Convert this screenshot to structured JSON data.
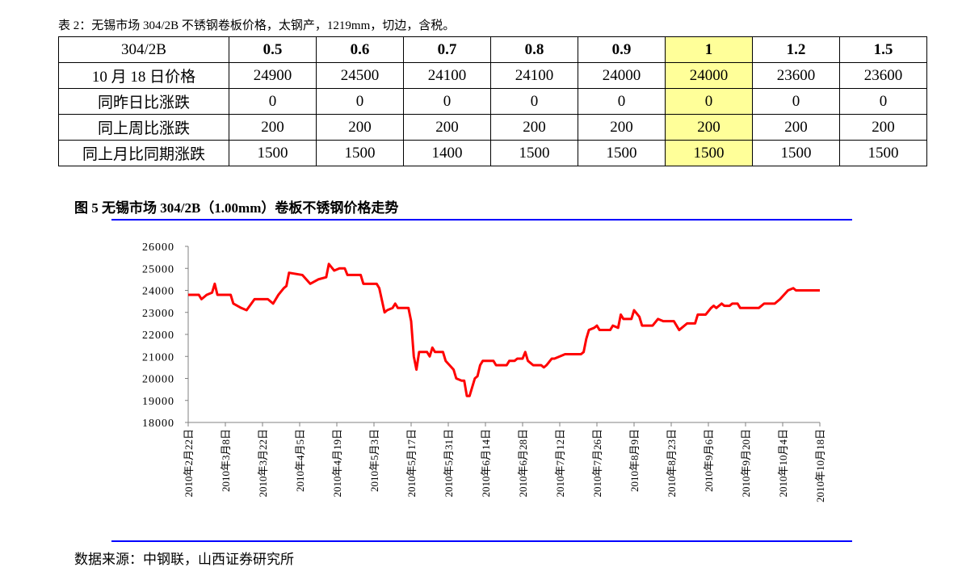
{
  "caption": "表 2：无锡市场 304/2B 不锈钢卷板价格，太钢产，1219mm，切边，含税。",
  "table": {
    "header": [
      "304/2B",
      "0.5",
      "0.6",
      "0.7",
      "0.8",
      "0.9",
      "1",
      "1.2",
      "1.5"
    ],
    "rows": [
      [
        "10 月 18 日价格",
        24900,
        24500,
        24100,
        24100,
        24000,
        24000,
        23600,
        23600
      ],
      [
        "同昨日比涨跌",
        0,
        0,
        0,
        0,
        0,
        0,
        0,
        0
      ],
      [
        "同上周比涨跌",
        200,
        200,
        200,
        200,
        200,
        200,
        200,
        200
      ],
      [
        "同上月比同期涨跌",
        1500,
        1500,
        1400,
        1500,
        1500,
        1500,
        1500,
        1500
      ]
    ],
    "highlight_column": 6,
    "highlight_color": "#ffff99"
  },
  "chart_data": {
    "type": "line",
    "title": "图 5  无锡市场 304/2B（1.00mm）卷板不锈钢价格走势",
    "x": [
      "2010-02-22",
      "2010-02-26",
      "2010-02-27",
      "2010-03-01",
      "2010-03-03",
      "2010-03-04",
      "2010-03-05",
      "2010-03-10",
      "2010-03-11",
      "2010-03-14",
      "2010-03-16",
      "2010-03-19",
      "2010-03-24",
      "2010-03-26",
      "2010-03-28",
      "2010-03-30",
      "2010-03-31",
      "2010-04-01",
      "2010-04-06",
      "2010-04-09",
      "2010-04-12",
      "2010-04-15",
      "2010-04-16",
      "2010-04-18",
      "2010-04-20",
      "2010-04-22",
      "2010-04-23",
      "2010-04-28",
      "2010-04-29",
      "2010-05-04",
      "2010-05-05",
      "2010-05-07",
      "2010-05-08",
      "2010-05-10",
      "2010-05-11",
      "2010-05-12",
      "2010-05-16",
      "2010-05-17",
      "2010-05-18",
      "2010-05-19",
      "2010-05-20",
      "2010-05-23",
      "2010-05-24",
      "2010-05-25",
      "2010-05-26",
      "2010-05-29",
      "2010-05-30",
      "2010-06-02",
      "2010-06-03",
      "2010-06-05",
      "2010-06-06",
      "2010-06-07",
      "2010-06-08",
      "2010-06-09",
      "2010-06-10",
      "2010-06-11",
      "2010-06-12",
      "2010-06-13",
      "2010-06-17",
      "2010-06-18",
      "2010-06-22",
      "2010-06-23",
      "2010-06-25",
      "2010-06-26",
      "2010-06-28",
      "2010-06-29",
      "2010-06-30",
      "2010-07-01",
      "2010-07-02",
      "2010-07-05",
      "2010-07-06",
      "2010-07-07",
      "2010-07-09",
      "2010-07-10",
      "2010-07-12",
      "2010-07-14",
      "2010-07-20",
      "2010-07-21",
      "2010-07-22",
      "2010-07-23",
      "2010-07-25",
      "2010-07-26",
      "2010-07-27",
      "2010-07-31",
      "2010-08-01",
      "2010-08-03",
      "2010-08-04",
      "2010-08-05",
      "2010-08-08",
      "2010-08-09",
      "2010-08-11",
      "2010-08-12",
      "2010-08-16",
      "2010-08-18",
      "2010-08-20",
      "2010-08-24",
      "2010-08-26",
      "2010-08-27",
      "2010-08-29",
      "2010-09-01",
      "2010-09-02",
      "2010-09-05",
      "2010-09-07",
      "2010-09-08",
      "2010-09-09",
      "2010-09-11",
      "2010-09-12",
      "2010-09-14",
      "2010-09-15",
      "2010-09-17",
      "2010-09-18",
      "2010-09-25",
      "2010-09-27",
      "2010-10-01",
      "2010-10-03",
      "2010-10-06",
      "2010-10-08",
      "2010-10-09",
      "2010-10-18"
    ],
    "series": [
      {
        "color": "#ff0000",
        "values": [
          23800,
          23800,
          23600,
          23800,
          23900,
          24300,
          23800,
          23800,
          23400,
          23200,
          23100,
          23600,
          23600,
          23400,
          23800,
          24100,
          24200,
          24800,
          24700,
          24300,
          24500,
          24600,
          25200,
          24900,
          25000,
          25000,
          24700,
          24700,
          24300,
          24300,
          24100,
          23000,
          23100,
          23200,
          23400,
          23200,
          23200,
          22600,
          21000,
          20400,
          21200,
          21200,
          21000,
          21400,
          21200,
          21200,
          20800,
          20400,
          20000,
          19900,
          19900,
          19200,
          19200,
          19600,
          20000,
          20100,
          20600,
          20800,
          20800,
          20600,
          20600,
          20800,
          20800,
          20900,
          20900,
          21200,
          20800,
          20700,
          20600,
          20600,
          20500,
          20600,
          20900,
          20900,
          21000,
          21100,
          21100,
          21200,
          21800,
          22200,
          22300,
          22400,
          22200,
          22200,
          22400,
          22300,
          22900,
          22700,
          22700,
          23100,
          22800,
          22400,
          22400,
          22700,
          22600,
          22600,
          22200,
          22300,
          22500,
          22500,
          22900,
          22900,
          23200,
          23300,
          23200,
          23400,
          23300,
          23300,
          23400,
          23400,
          23200,
          23200,
          23400,
          23400,
          23600,
          24000,
          24100,
          24000,
          24000
        ]
      }
    ],
    "xlim": [
      "2010-02-22",
      "2010-10-18"
    ],
    "xticks": [
      {
        "value": "2010-02-22",
        "label": "2010年2月22日"
      },
      {
        "value": "2010-03-08",
        "label": "2010年3月8日"
      },
      {
        "value": "2010-03-22",
        "label": "2010年3月22日"
      },
      {
        "value": "2010-04-05",
        "label": "2010年4月5日"
      },
      {
        "value": "2010-04-19",
        "label": "2010年4月19日"
      },
      {
        "value": "2010-05-03",
        "label": "2010年5月3日"
      },
      {
        "value": "2010-05-17",
        "label": "2010年5月17日"
      },
      {
        "value": "2010-05-31",
        "label": "2010年5月31日"
      },
      {
        "value": "2010-06-14",
        "label": "2010年6月14日"
      },
      {
        "value": "2010-06-28",
        "label": "2010年6月28日"
      },
      {
        "value": "2010-07-12",
        "label": "2010年7月12日"
      },
      {
        "value": "2010-07-26",
        "label": "2010年7月26日"
      },
      {
        "value": "2010-08-09",
        "label": "2010年8月9日"
      },
      {
        "value": "2010-08-23",
        "label": "2010年8月23日"
      },
      {
        "value": "2010-09-06",
        "label": "2010年9月6日"
      },
      {
        "value": "2010-09-20",
        "label": "2010年9月20日"
      },
      {
        "value": "2010-10-04",
        "label": "2010年10月4日"
      },
      {
        "value": "2010-10-18",
        "label": "2010年10月18日"
      }
    ],
    "ylim": [
      18000,
      26000
    ],
    "yticks": [
      18000,
      19000,
      20000,
      21000,
      22000,
      23000,
      24000,
      25000,
      26000
    ],
    "grid": false
  },
  "source": "数据来源：中钢联，山西证券研究所"
}
